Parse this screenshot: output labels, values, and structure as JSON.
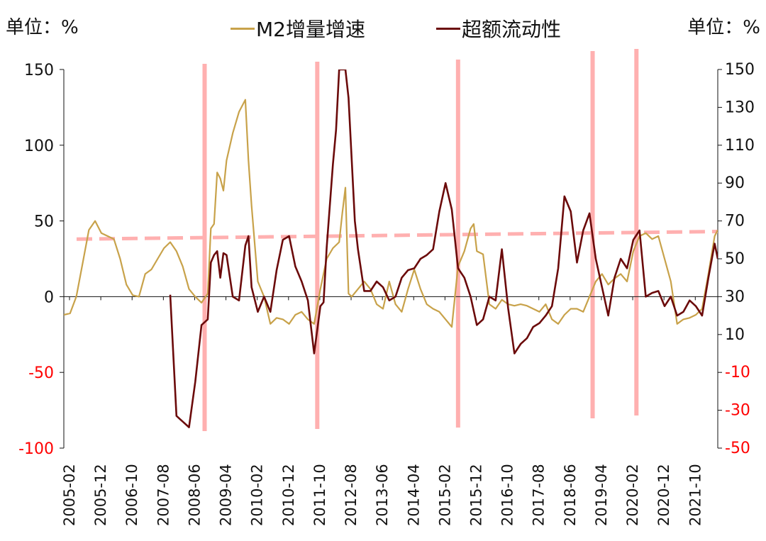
{
  "units": {
    "left": "单位：%",
    "right": "单位：%"
  },
  "colors": {
    "m2": "#C8A24A",
    "excess": "#6B0A0A",
    "markers": "#FFB0B0",
    "negative_tick": "#FF0000",
    "axis": "#111111"
  },
  "chart_data": {
    "type": "line",
    "legend": {
      "position": "top-center",
      "entries": [
        "M2增量增速",
        "超额流动性"
      ]
    },
    "y_left": {
      "ylim": [
        -100,
        150
      ],
      "ticks": [
        "150",
        "100",
        "50",
        "0",
        "-50",
        "-100"
      ]
    },
    "y_right": {
      "ylim": [
        -50,
        150
      ],
      "ticks": [
        "150",
        "130",
        "110",
        "90",
        "70",
        "50",
        "30",
        "10",
        "-10",
        "-30",
        "-50"
      ]
    },
    "x_tick_labels": [
      "2005-02",
      "2005-12",
      "2006-10",
      "2007-08",
      "2008-06",
      "2009-04",
      "2010-02",
      "2010-12",
      "2011-10",
      "2012-08",
      "2013-06",
      "2014-04",
      "2015-02",
      "2015-12",
      "2016-10",
      "2017-08",
      "2018-06",
      "2019-04",
      "2020-02",
      "2020-12",
      "2021-10"
    ],
    "x_range": [
      "2005-02",
      "2022-07"
    ],
    "grid": false,
    "series": [
      {
        "name": "M2增量增速",
        "axis": "left",
        "points": [
          [
            "2005-02",
            -12
          ],
          [
            "2005-04",
            -11
          ],
          [
            "2005-06",
            0
          ],
          [
            "2005-08",
            22
          ],
          [
            "2005-10",
            44
          ],
          [
            "2005-12",
            50
          ],
          [
            "2006-02",
            42
          ],
          [
            "2006-04",
            40
          ],
          [
            "2006-06",
            38
          ],
          [
            "2006-08",
            25
          ],
          [
            "2006-10",
            8
          ],
          [
            "2006-12",
            1
          ],
          [
            "2007-02",
            0
          ],
          [
            "2007-04",
            15
          ],
          [
            "2007-06",
            18
          ],
          [
            "2007-08",
            25
          ],
          [
            "2007-10",
            32
          ],
          [
            "2007-12",
            36
          ],
          [
            "2008-02",
            30
          ],
          [
            "2008-04",
            20
          ],
          [
            "2008-06",
            5
          ],
          [
            "2008-08",
            0
          ],
          [
            "2008-10",
            -4
          ],
          [
            "2008-12",
            2
          ],
          [
            "2009-01",
            45
          ],
          [
            "2009-02",
            48
          ],
          [
            "2009-03",
            82
          ],
          [
            "2009-04",
            78
          ],
          [
            "2009-05",
            70
          ],
          [
            "2009-06",
            90
          ],
          [
            "2009-08",
            108
          ],
          [
            "2009-10",
            122
          ],
          [
            "2009-12",
            130
          ],
          [
            "2010-01",
            90
          ],
          [
            "2010-02",
            60
          ],
          [
            "2010-04",
            10
          ],
          [
            "2010-06",
            0
          ],
          [
            "2010-08",
            -18
          ],
          [
            "2010-10",
            -14
          ],
          [
            "2010-12",
            -15
          ],
          [
            "2011-02",
            -18
          ],
          [
            "2011-04",
            -12
          ],
          [
            "2011-06",
            -10
          ],
          [
            "2011-08",
            -15
          ],
          [
            "2011-10",
            -18
          ],
          [
            "2011-12",
            5
          ],
          [
            "2012-02",
            25
          ],
          [
            "2012-04",
            32
          ],
          [
            "2012-06",
            36
          ],
          [
            "2012-07",
            55
          ],
          [
            "2012-08",
            72
          ],
          [
            "2012-09",
            2
          ],
          [
            "2012-10",
            0
          ],
          [
            "2012-12",
            5
          ],
          [
            "2013-02",
            10
          ],
          [
            "2013-04",
            5
          ],
          [
            "2013-06",
            -5
          ],
          [
            "2013-08",
            -8
          ],
          [
            "2013-10",
            10
          ],
          [
            "2013-12",
            -5
          ],
          [
            "2014-02",
            -10
          ],
          [
            "2014-04",
            5
          ],
          [
            "2014-06",
            18
          ],
          [
            "2014-08",
            5
          ],
          [
            "2014-10",
            -5
          ],
          [
            "2014-12",
            -8
          ],
          [
            "2015-02",
            -10
          ],
          [
            "2015-04",
            -15
          ],
          [
            "2015-06",
            -20
          ],
          [
            "2015-08",
            20
          ],
          [
            "2015-10",
            30
          ],
          [
            "2015-12",
            45
          ],
          [
            "2016-01",
            48
          ],
          [
            "2016-02",
            30
          ],
          [
            "2016-04",
            28
          ],
          [
            "2016-06",
            -5
          ],
          [
            "2016-08",
            -8
          ],
          [
            "2016-10",
            -2
          ],
          [
            "2016-12",
            -5
          ],
          [
            "2017-02",
            -6
          ],
          [
            "2017-04",
            -5
          ],
          [
            "2017-06",
            -6
          ],
          [
            "2017-08",
            -8
          ],
          [
            "2017-10",
            -10
          ],
          [
            "2017-12",
            -5
          ],
          [
            "2018-02",
            -15
          ],
          [
            "2018-04",
            -18
          ],
          [
            "2018-06",
            -12
          ],
          [
            "2018-08",
            -8
          ],
          [
            "2018-10",
            -8
          ],
          [
            "2018-12",
            -10
          ],
          [
            "2019-02",
            0
          ],
          [
            "2019-04",
            10
          ],
          [
            "2019-06",
            15
          ],
          [
            "2019-08",
            8
          ],
          [
            "2019-10",
            12
          ],
          [
            "2019-12",
            15
          ],
          [
            "2020-02",
            10
          ],
          [
            "2020-04",
            30
          ],
          [
            "2020-06",
            40
          ],
          [
            "2020-08",
            42
          ],
          [
            "2020-10",
            38
          ],
          [
            "2020-12",
            40
          ],
          [
            "2021-02",
            25
          ],
          [
            "2021-04",
            10
          ],
          [
            "2021-06",
            -18
          ],
          [
            "2021-08",
            -15
          ],
          [
            "2021-10",
            -14
          ],
          [
            "2021-12",
            -12
          ],
          [
            "2022-02",
            -8
          ],
          [
            "2022-04",
            15
          ],
          [
            "2022-06",
            40
          ],
          [
            "2022-07",
            44
          ]
        ]
      },
      {
        "name": "超额流动性",
        "axis": "right",
        "points": [
          [
            "2007-12",
            31
          ],
          [
            "2008-02",
            -33
          ],
          [
            "2008-04",
            -36
          ],
          [
            "2008-06",
            -39
          ],
          [
            "2008-08",
            -15
          ],
          [
            "2008-10",
            15
          ],
          [
            "2008-12",
            18
          ],
          [
            "2009-01",
            48
          ],
          [
            "2009-02",
            52
          ],
          [
            "2009-03",
            54
          ],
          [
            "2009-04",
            40
          ],
          [
            "2009-05",
            53
          ],
          [
            "2009-06",
            52
          ],
          [
            "2009-08",
            30
          ],
          [
            "2009-10",
            28
          ],
          [
            "2009-12",
            57
          ],
          [
            "2010-01",
            62
          ],
          [
            "2010-02",
            35
          ],
          [
            "2010-04",
            22
          ],
          [
            "2010-06",
            30
          ],
          [
            "2010-08",
            22
          ],
          [
            "2010-10",
            44
          ],
          [
            "2010-12",
            60
          ],
          [
            "2011-02",
            62
          ],
          [
            "2011-04",
            46
          ],
          [
            "2011-06",
            38
          ],
          [
            "2011-08",
            28
          ],
          [
            "2011-10",
            0
          ],
          [
            "2011-12",
            25
          ],
          [
            "2012-01",
            27
          ],
          [
            "2012-02",
            56
          ],
          [
            "2012-04",
            100
          ],
          [
            "2012-05",
            118
          ],
          [
            "2012-06",
            150
          ],
          [
            "2012-08",
            150
          ],
          [
            "2012-09",
            135
          ],
          [
            "2012-11",
            70
          ],
          [
            "2012-12",
            55
          ],
          [
            "2013-02",
            33
          ],
          [
            "2013-04",
            33
          ],
          [
            "2013-06",
            38
          ],
          [
            "2013-08",
            35
          ],
          [
            "2013-10",
            28
          ],
          [
            "2013-12",
            30
          ],
          [
            "2014-02",
            40
          ],
          [
            "2014-04",
            44
          ],
          [
            "2014-06",
            45
          ],
          [
            "2014-08",
            50
          ],
          [
            "2014-10",
            52
          ],
          [
            "2014-12",
            55
          ],
          [
            "2015-02",
            75
          ],
          [
            "2015-04",
            90
          ],
          [
            "2015-06",
            76
          ],
          [
            "2015-08",
            45
          ],
          [
            "2015-10",
            40
          ],
          [
            "2015-12",
            30
          ],
          [
            "2016-02",
            15
          ],
          [
            "2016-04",
            18
          ],
          [
            "2016-06",
            30
          ],
          [
            "2016-08",
            28
          ],
          [
            "2016-10",
            55
          ],
          [
            "2016-12",
            24
          ],
          [
            "2017-02",
            0
          ],
          [
            "2017-04",
            5
          ],
          [
            "2017-06",
            8
          ],
          [
            "2017-08",
            14
          ],
          [
            "2017-10",
            16
          ],
          [
            "2017-12",
            20
          ],
          [
            "2018-02",
            25
          ],
          [
            "2018-04",
            45
          ],
          [
            "2018-06",
            83
          ],
          [
            "2018-08",
            75
          ],
          [
            "2018-10",
            48
          ],
          [
            "2018-12",
            65
          ],
          [
            "2019-02",
            74
          ],
          [
            "2019-04",
            50
          ],
          [
            "2019-06",
            35
          ],
          [
            "2019-08",
            20
          ],
          [
            "2019-10",
            40
          ],
          [
            "2019-12",
            50
          ],
          [
            "2020-02",
            45
          ],
          [
            "2020-04",
            60
          ],
          [
            "2020-06",
            65
          ],
          [
            "2020-08",
            30
          ],
          [
            "2020-10",
            32
          ],
          [
            "2020-12",
            33
          ],
          [
            "2021-02",
            25
          ],
          [
            "2021-04",
            30
          ],
          [
            "2021-06",
            20
          ],
          [
            "2021-08",
            22
          ],
          [
            "2021-10",
            28
          ],
          [
            "2021-12",
            25
          ],
          [
            "2022-02",
            20
          ],
          [
            "2022-04",
            40
          ],
          [
            "2022-06",
            58
          ],
          [
            "2022-07",
            50
          ]
        ]
      },
      {
        "name": "",
        "style": "dashed",
        "axis": "left",
        "points": [
          [
            "2005-02",
            38
          ],
          [
            "2022-07",
            43
          ]
        ]
      }
    ],
    "vertical_markers": [
      "2008-11",
      "2011-11",
      "2015-08",
      "2019-03",
      "2020-05"
    ]
  }
}
